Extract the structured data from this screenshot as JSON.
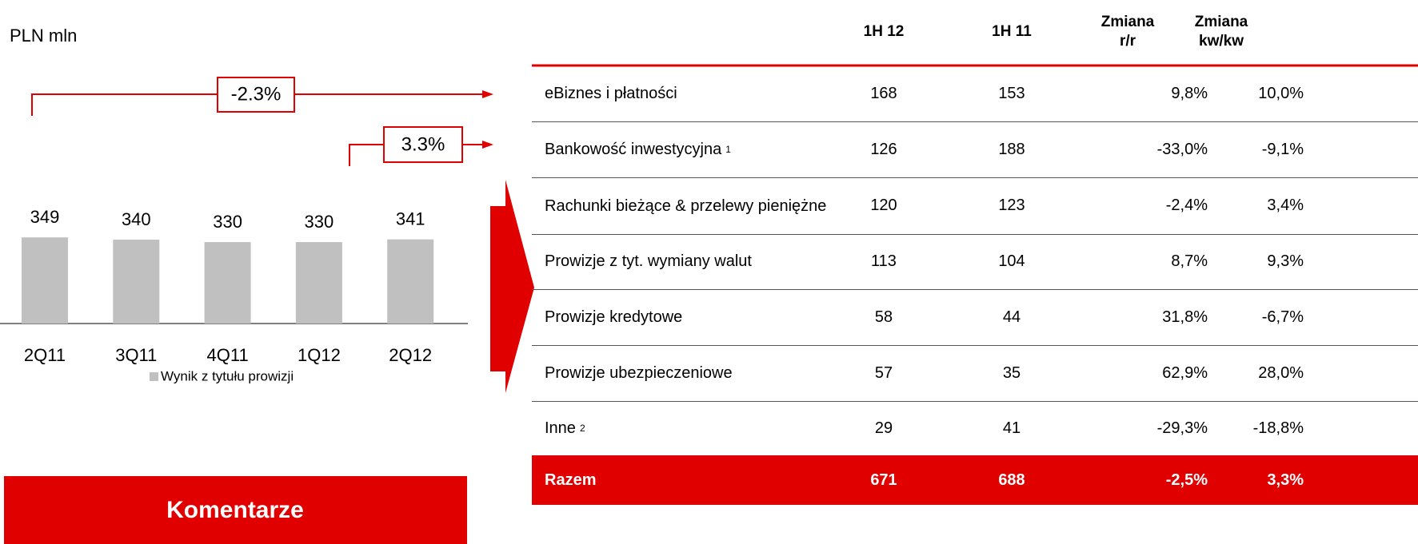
{
  "unit_label": "PLN mln",
  "chart_data": {
    "type": "bar",
    "categories": [
      "2Q11",
      "3Q11",
      "4Q11",
      "1Q12",
      "2Q12"
    ],
    "series": [
      {
        "name": "Wynik z tytułu prowizji",
        "color": "#c0c0c0",
        "values": [
          349,
          340,
          330,
          330,
          341
        ]
      }
    ],
    "ylim": [
      0,
      450
    ]
  },
  "annotations": [
    {
      "label": "-2.3%"
    },
    {
      "label": "3.3%"
    }
  ],
  "comment_title": "Komentarze",
  "table": {
    "columns": [
      "1H 12",
      "1H 11",
      "Zmiana r/r",
      "Zmiana kw/kw"
    ],
    "rows": [
      {
        "label": "eBiznes i płatności",
        "cells": [
          168,
          153,
          "9,8%",
          "10,0%"
        ]
      },
      {
        "label": "Bankowość inwestycyjna",
        "note": "1",
        "cells": [
          126,
          188,
          "-33,0%",
          "-9,1%"
        ]
      },
      {
        "label": "Rachunki bieżące & przelewy pieniężne",
        "cells": [
          120,
          123,
          "-2,4%",
          "3,4%"
        ]
      },
      {
        "label": "Prowizje z tyt. wymiany walut",
        "cells": [
          113,
          104,
          "8,7%",
          "9,3%"
        ]
      },
      {
        "label": "Prowizje kredytowe",
        "cells": [
          58,
          44,
          "31,8%",
          "-6,7%"
        ]
      },
      {
        "label": "Prowizje ubezpieczeniowe",
        "cells": [
          57,
          35,
          "62,9%",
          "28,0%"
        ]
      },
      {
        "label": "Inne",
        "note": "2",
        "cells": [
          29,
          41,
          "-29,3%",
          "-18,8%"
        ]
      }
    ],
    "total": {
      "label": "Razem",
      "cells": [
        671,
        688,
        "-2,5%",
        "3,3%"
      ]
    }
  }
}
